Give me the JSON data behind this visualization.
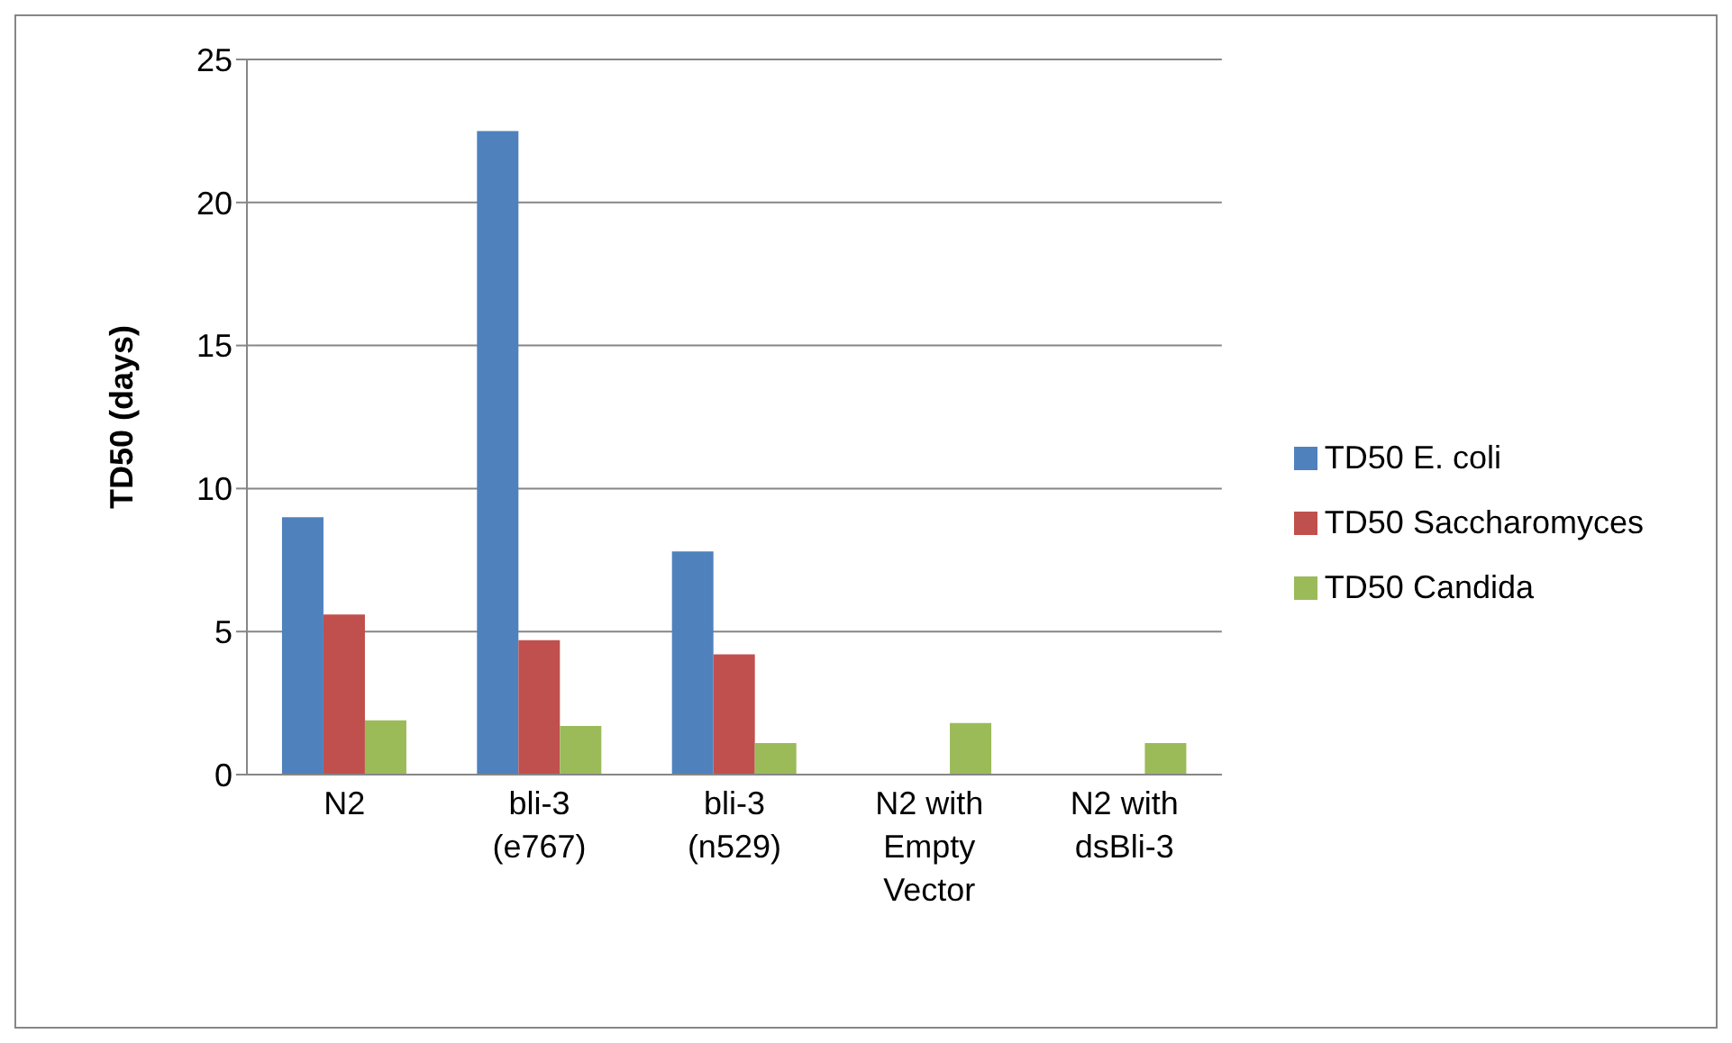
{
  "chart_data": {
    "type": "bar",
    "ylabel": "TD50 (days)",
    "categories": [
      "N2",
      "bli-3 (e767)",
      "bli-3 (n529)",
      "N2 with Empty Vector",
      "N2 with dsBli-3"
    ],
    "series": [
      {
        "name": "TD50 E. coli",
        "color": "#4f81bd",
        "values": [
          9,
          22.5,
          7.8,
          null,
          null
        ]
      },
      {
        "name": "TD50 Saccharomyces",
        "color": "#c0504d",
        "values": [
          5.6,
          4.7,
          4.2,
          null,
          null
        ]
      },
      {
        "name": "TD50 Candida",
        "color": "#9bbb59",
        "values": [
          1.9,
          1.7,
          1.1,
          1.8,
          1.1
        ]
      }
    ],
    "ylim": [
      0,
      25
    ],
    "yticks": [
      0,
      5,
      10,
      15,
      20,
      25
    ],
    "grid": "y",
    "legend": "right"
  }
}
